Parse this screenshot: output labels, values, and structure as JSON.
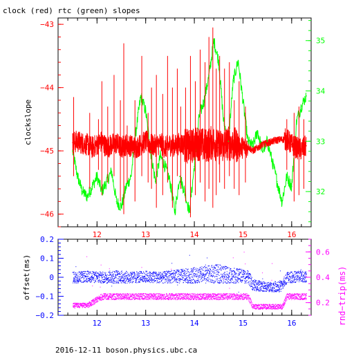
{
  "title": "clock (red) rtc (green) slopes",
  "footer": "2016-12-11 boson.physics.ubc.ca",
  "colors": {
    "red": "#ff0000",
    "green": "#00ff00",
    "blue": "#0000ff",
    "magenta": "#ff00ff",
    "axis": "#000000"
  },
  "chart_data": [
    {
      "type": "line",
      "ylabel": "clockslope",
      "y2label": "",
      "xlim": [
        11.2,
        16.4
      ],
      "ylim": [
        -46.2,
        -42.9
      ],
      "y2lim": [
        31.3,
        35.45
      ],
      "x_ticks": [
        {
          "value": 12,
          "label": "12"
        },
        {
          "value": 13,
          "label": "13"
        },
        {
          "value": 14,
          "label": "14"
        },
        {
          "value": 15,
          "label": "15"
        },
        {
          "value": 16,
          "label": "16"
        }
      ],
      "y_ticks": [
        {
          "value": -43,
          "label": "−43"
        },
        {
          "value": -44,
          "label": "−44"
        },
        {
          "value": -45,
          "label": "−45"
        },
        {
          "value": -46,
          "label": "−46"
        }
      ],
      "y2_ticks": [
        {
          "value": 35,
          "label": "35"
        },
        {
          "value": 34,
          "label": "34"
        },
        {
          "value": 33,
          "label": "33"
        },
        {
          "value": 32,
          "label": "32"
        }
      ],
      "series": [
        {
          "name": "clock",
          "color": "red",
          "axis": "left",
          "x": [
            11.5,
            11.6,
            11.7,
            11.8,
            11.9,
            12.0,
            12.1,
            12.2,
            12.3,
            12.4,
            12.5,
            12.6,
            12.7,
            12.8,
            12.9,
            13.0,
            13.1,
            13.2,
            13.3,
            13.4,
            13.5,
            13.6,
            13.7,
            13.8,
            13.9,
            14.0,
            14.1,
            14.2,
            14.3,
            14.4,
            14.5,
            14.6,
            14.7,
            14.8,
            14.9,
            15.0,
            15.1,
            15.2,
            15.3,
            15.4,
            15.5,
            15.6,
            15.7,
            15.8,
            15.9,
            16.0,
            16.1,
            16.2,
            16.3
          ],
          "values": [
            -44.87,
            -44.85,
            -44.88,
            -44.9,
            -44.95,
            -44.9,
            -44.85,
            -44.95,
            -44.9,
            -44.88,
            -44.95,
            -44.9,
            -44.92,
            -44.95,
            -44.9,
            -44.85,
            -44.9,
            -44.92,
            -44.88,
            -44.95,
            -44.9,
            -44.92,
            -44.88,
            -44.9,
            -44.95,
            -44.9,
            -44.88,
            -44.92,
            -44.9,
            -44.85,
            -44.95,
            -44.9,
            -44.88,
            -44.9,
            -44.92,
            -44.95,
            -44.93,
            -45.0,
            -44.95,
            -44.9,
            -44.88,
            -44.85,
            -44.83,
            -44.82,
            -44.82,
            -44.9,
            -44.95,
            -44.98,
            -44.92
          ]
        },
        {
          "name": "rtc",
          "color": "green",
          "axis": "right",
          "x": [
            11.5,
            11.6,
            11.7,
            11.8,
            11.9,
            12.0,
            12.1,
            12.2,
            12.3,
            12.4,
            12.5,
            12.6,
            12.7,
            12.8,
            12.9,
            13.0,
            13.1,
            13.2,
            13.3,
            13.4,
            13.5,
            13.6,
            13.7,
            13.8,
            13.9,
            14.0,
            14.1,
            14.2,
            14.3,
            14.4,
            14.5,
            14.6,
            14.7,
            14.8,
            14.9,
            15.0,
            15.1,
            15.2,
            15.3,
            15.4,
            15.5,
            15.6,
            15.7,
            15.8,
            15.9,
            16.0,
            16.1,
            16.2,
            16.3
          ],
          "values": [
            32.8,
            32.3,
            32.0,
            31.9,
            32.1,
            32.3,
            32.0,
            32.2,
            32.4,
            31.8,
            31.7,
            32.1,
            32.3,
            33.2,
            33.9,
            33.6,
            32.8,
            32.2,
            32.7,
            32.5,
            32.2,
            31.6,
            32.3,
            32.0,
            31.6,
            32.5,
            33.5,
            33.8,
            34.3,
            35.0,
            34.6,
            33.4,
            33.0,
            34.2,
            34.6,
            33.8,
            33.0,
            32.9,
            33.2,
            32.8,
            33.0,
            32.6,
            32.2,
            31.8,
            32.3,
            32.1,
            33.4,
            33.7,
            33.9
          ]
        }
      ],
      "spikes": {
        "series": "clock",
        "x": [
          11.52,
          11.85,
          12.03,
          12.1,
          12.22,
          12.35,
          12.48,
          12.55,
          12.62,
          12.78,
          12.92,
          13.05,
          13.12,
          13.22,
          13.35,
          13.45,
          13.55,
          13.65,
          13.72,
          13.82,
          13.92,
          14.02,
          14.12,
          14.22,
          14.3,
          14.38,
          14.45,
          14.52,
          14.62,
          14.72,
          14.82,
          14.92,
          15.05,
          15.9,
          16.05,
          16.15,
          16.25
        ],
        "high": [
          -44.15,
          -44.4,
          -44.5,
          -43.9,
          -44.3,
          -43.8,
          -44.2,
          -43.3,
          -44.6,
          -44.2,
          -43.5,
          -44.4,
          -44.0,
          -43.8,
          -44.1,
          -43.5,
          -44.0,
          -43.7,
          -44.3,
          -44.0,
          -43.5,
          -43.9,
          -43.4,
          -43.6,
          -43.2,
          -43.05,
          -43.7,
          -43.5,
          -43.7,
          -43.6,
          -44.2,
          -43.9,
          -44.3,
          -44.5,
          -44.4,
          -44.3,
          -44.5
        ],
        "low": [
          -45.4,
          -45.6,
          -45.3,
          -45.7,
          -45.5,
          -45.4,
          -45.8,
          -46.0,
          -45.5,
          -45.8,
          -45.4,
          -45.5,
          -45.6,
          -45.9,
          -45.7,
          -45.5,
          -45.9,
          -45.4,
          -45.6,
          -45.8,
          -46.05,
          -45.7,
          -45.5,
          -45.8,
          -45.6,
          -45.9,
          -45.7,
          -45.5,
          -45.6,
          -45.4,
          -45.6,
          -45.7,
          -45.5,
          -45.3,
          -45.8,
          -45.7,
          -45.6
        ]
      }
    },
    {
      "type": "scatter",
      "ylabel": "offset(ms)",
      "y2label": "rnd−trip(ms)",
      "xlim": [
        11.2,
        16.4
      ],
      "ylim": [
        -0.2,
        0.2
      ],
      "y2lim": [
        0.1,
        0.7
      ],
      "x_ticks": [
        {
          "value": 12,
          "label": "12"
        },
        {
          "value": 13,
          "label": "13"
        },
        {
          "value": 14,
          "label": "14"
        },
        {
          "value": 15,
          "label": "15"
        },
        {
          "value": 16,
          "label": "16"
        }
      ],
      "y_ticks": [
        {
          "value": 0.2,
          "label": "0.2"
        },
        {
          "value": 0.1,
          "label": "0.1"
        },
        {
          "value": 0,
          "label": "0"
        },
        {
          "value": -0.1,
          "label": "−0.1"
        },
        {
          "value": -0.2,
          "label": "−0.2"
        }
      ],
      "y2_ticks": [
        {
          "value": 0.6,
          "label": "0.6"
        },
        {
          "value": 0.4,
          "label": "0.4"
        },
        {
          "value": 0.2,
          "label": "0.2"
        }
      ],
      "series": [
        {
          "name": "offset",
          "color": "blue",
          "axis": "left",
          "x": [
            11.5,
            11.8,
            12.1,
            12.4,
            12.7,
            13.0,
            13.3,
            13.6,
            13.9,
            14.2,
            14.5,
            14.8,
            15.1,
            15.2,
            15.5,
            15.8,
            15.9,
            16.1,
            16.3
          ],
          "values": [
            0.0,
            0.005,
            0.0,
            0.005,
            0.0,
            0.005,
            0.0,
            0.005,
            0.01,
            0.015,
            0.02,
            0.01,
            0.005,
            -0.04,
            -0.05,
            -0.045,
            0.0,
            0.005,
            0.005
          ],
          "spread": [
            0.03,
            0.03,
            0.03,
            0.035,
            0.03,
            0.03,
            0.03,
            0.035,
            0.04,
            0.045,
            0.05,
            0.04,
            0.035,
            0.03,
            0.025,
            0.03,
            0.03,
            0.03,
            0.03
          ]
        },
        {
          "name": "rnd-trip",
          "color": "magenta",
          "axis": "right",
          "x": [
            11.5,
            11.8,
            12.1,
            12.4,
            12.7,
            13.0,
            13.3,
            13.6,
            13.9,
            14.2,
            14.5,
            14.8,
            15.1,
            15.2,
            15.5,
            15.8,
            15.9,
            16.1,
            16.3
          ],
          "values": [
            0.18,
            0.18,
            0.25,
            0.25,
            0.25,
            0.25,
            0.25,
            0.25,
            0.25,
            0.25,
            0.25,
            0.25,
            0.25,
            0.17,
            0.17,
            0.17,
            0.25,
            0.25,
            0.25
          ],
          "spread": [
            0.02,
            0.02,
            0.025,
            0.025,
            0.025,
            0.025,
            0.025,
            0.025,
            0.025,
            0.025,
            0.025,
            0.025,
            0.025,
            0.02,
            0.02,
            0.02,
            0.025,
            0.025,
            0.025
          ]
        }
      ]
    }
  ]
}
